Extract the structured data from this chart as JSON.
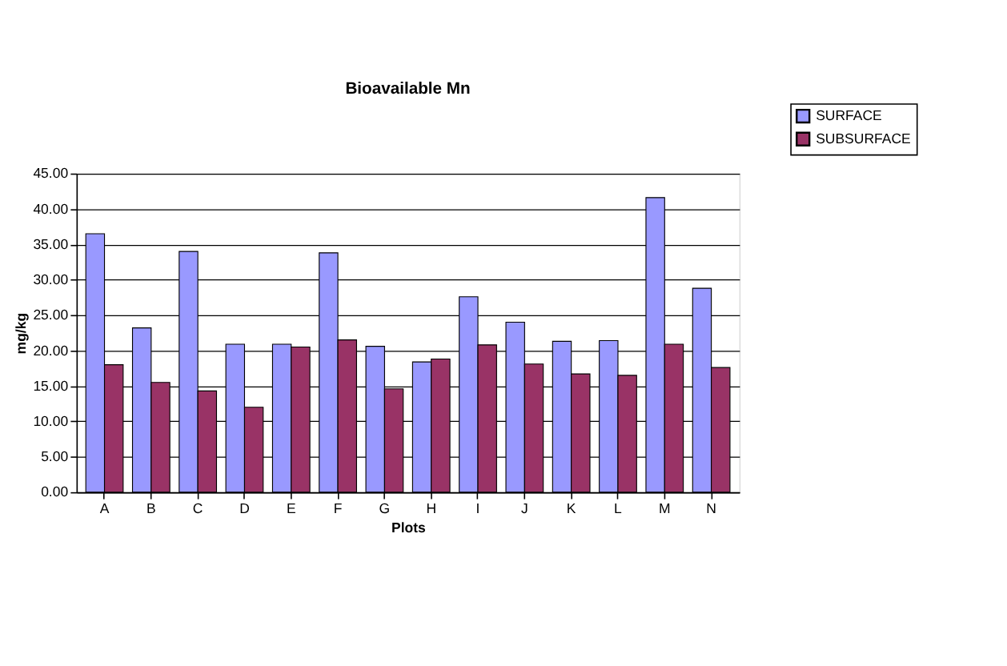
{
  "chart_data": {
    "type": "bar",
    "title": "Bioavailable Mn",
    "xlabel": "Plots",
    "ylabel": "mg/kg",
    "categories": [
      "A",
      "B",
      "C",
      "D",
      "E",
      "F",
      "G",
      "H",
      "I",
      "J",
      "K",
      "L",
      "M",
      "N"
    ],
    "series": [
      {
        "name": "SURFACE",
        "color": "#9999ff",
        "values": [
          36.5,
          23.2,
          34.0,
          20.9,
          20.9,
          33.8,
          20.6,
          18.4,
          27.6,
          24.0,
          21.3,
          21.4,
          41.6,
          28.8
        ]
      },
      {
        "name": "SUBSURFACE",
        "color": "#993366",
        "values": [
          18.0,
          15.5,
          14.3,
          12.0,
          20.5,
          21.5,
          14.6,
          18.8,
          20.8,
          18.1,
          16.7,
          16.5,
          20.9,
          17.6
        ]
      }
    ],
    "ylim": [
      0,
      45
    ],
    "yticks": [
      {
        "value": 0,
        "label": "0.00"
      },
      {
        "value": 5,
        "label": "5.00"
      },
      {
        "value": 10,
        "label": "10.00"
      },
      {
        "value": 15,
        "label": "15.00"
      },
      {
        "value": 20,
        "label": "20.00"
      },
      {
        "value": 25,
        "label": "25.00"
      },
      {
        "value": 30,
        "label": "30.00"
      },
      {
        "value": 35,
        "label": "35.00"
      },
      {
        "value": 40,
        "label": "40.00"
      },
      {
        "value": 45,
        "label": "45.00"
      }
    ],
    "grid": "y",
    "legend": "top right"
  }
}
